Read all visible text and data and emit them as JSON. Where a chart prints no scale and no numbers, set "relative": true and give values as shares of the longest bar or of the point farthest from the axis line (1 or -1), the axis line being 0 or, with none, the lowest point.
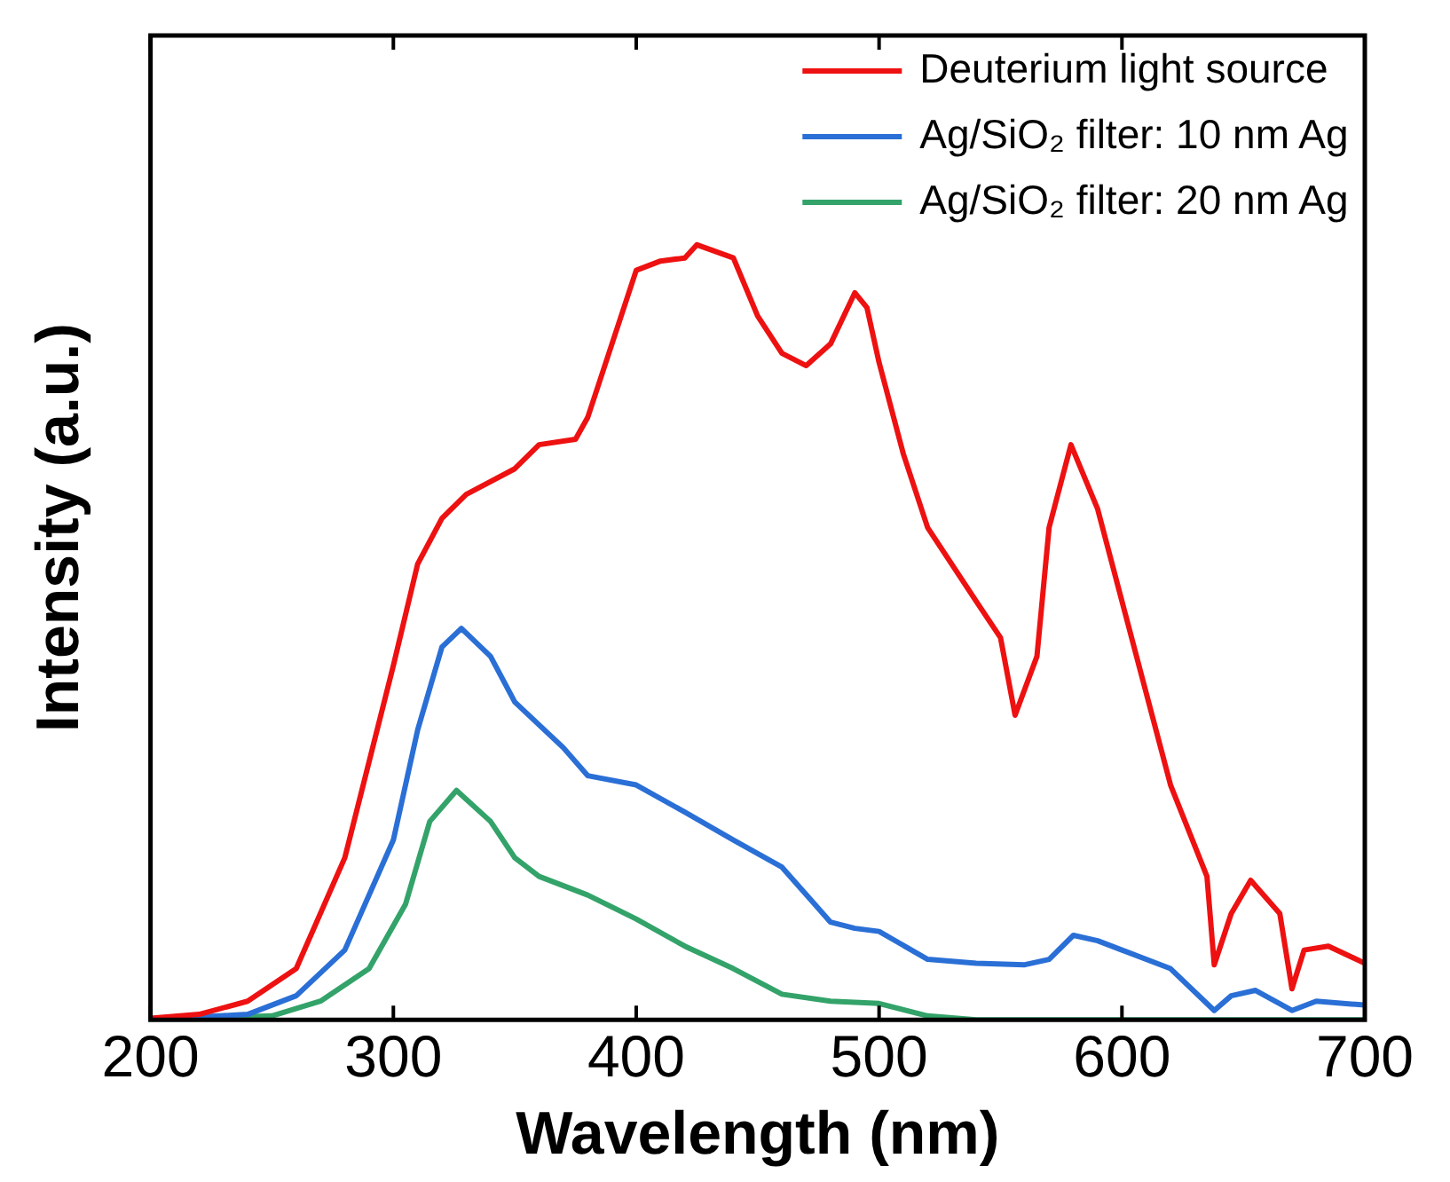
{
  "chart_data": {
    "type": "line",
    "relative": true,
    "xlabel": "Wavelength (nm)",
    "ylabel": "Intensity (a.u.)",
    "xlim": [
      200,
      700
    ],
    "xticks": [
      200,
      300,
      400,
      500,
      600,
      700
    ],
    "legend": "top right",
    "grid": false,
    "marker": "none",
    "line_style": "solid",
    "series": [
      {
        "name": "Deuterium light source",
        "color": "#ee1111",
        "x": [
          200,
          220,
          240,
          260,
          280,
          300,
          310,
          320,
          330,
          350,
          360,
          375,
          380,
          400,
          410,
          420,
          425,
          440,
          450,
          460,
          470,
          480,
          490,
          495,
          500,
          510,
          520,
          540,
          550,
          556,
          565,
          570,
          579,
          590,
          600,
          620,
          635,
          638,
          645,
          653,
          665,
          670,
          675,
          685,
          700
        ],
        "values": [
          0.002,
          0.007,
          0.024,
          0.066,
          0.209,
          0.457,
          0.588,
          0.647,
          0.678,
          0.711,
          0.742,
          0.749,
          0.777,
          0.967,
          0.979,
          0.983,
          1,
          0.983,
          0.908,
          0.86,
          0.844,
          0.872,
          0.938,
          0.919,
          0.848,
          0.73,
          0.635,
          0.54,
          0.493,
          0.393,
          0.469,
          0.635,
          0.742,
          0.659,
          0.54,
          0.303,
          0.185,
          0.071,
          0.137,
          0.18,
          0.137,
          0.04,
          0.09,
          0.095,
          0.073
        ]
      },
      {
        "name": "Ag/SiO₂ filter: 10 nm Ag",
        "color": "#2a6fd6",
        "x": [
          200,
          240,
          260,
          280,
          300,
          310,
          320,
          328,
          340,
          350,
          370,
          380,
          400,
          420,
          440,
          460,
          480,
          490,
          500,
          520,
          540,
          560,
          570,
          580,
          590,
          600,
          620,
          638,
          645,
          655,
          670,
          680,
          700
        ],
        "values": [
          0,
          0.007,
          0.031,
          0.09,
          0.232,
          0.374,
          0.481,
          0.505,
          0.469,
          0.41,
          0.351,
          0.315,
          0.303,
          0.268,
          0.232,
          0.197,
          0.126,
          0.118,
          0.114,
          0.078,
          0.073,
          0.071,
          0.078,
          0.109,
          0.102,
          0.09,
          0.066,
          0.012,
          0.031,
          0.038,
          0.012,
          0.024,
          0.019
        ]
      },
      {
        "name": "Ag/SiO₂ filter: 20 nm Ag",
        "color": "#33a36a",
        "x": [
          200,
          250,
          270,
          290,
          305,
          315,
          326,
          340,
          350,
          360,
          380,
          400,
          420,
          440,
          460,
          480,
          500,
          520,
          540,
          700
        ],
        "values": [
          0,
          0.005,
          0.024,
          0.066,
          0.149,
          0.256,
          0.296,
          0.256,
          0.209,
          0.185,
          0.161,
          0.13,
          0.095,
          0.066,
          0.033,
          0.024,
          0.021,
          0.005,
          0,
          0
        ]
      }
    ]
  }
}
